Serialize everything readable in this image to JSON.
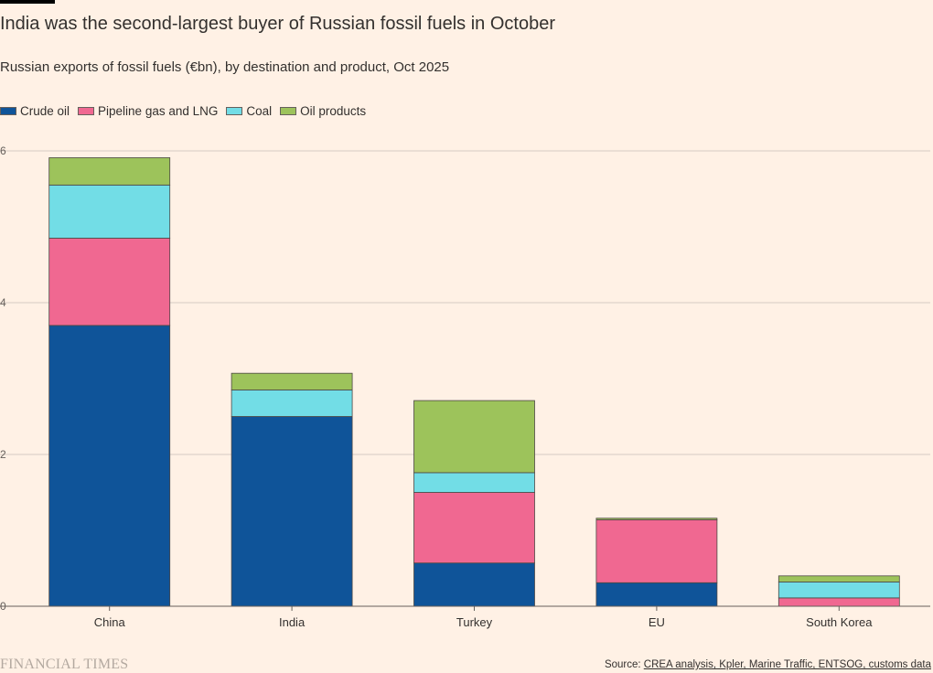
{
  "header": {
    "title": "India was the second-largest buyer of Russian fossil fuels in October",
    "subtitle": "Russian exports of fossil fuels (€bn), by destination and product, Oct 2025"
  },
  "footer": {
    "brand": "FINANCIAL TIMES",
    "source_prefix": "Source: ",
    "source_links": "CREA analysis, Kpler, Marine Traffic, ENTSOG, customs data"
  },
  "colors": {
    "background": "#fff1e5",
    "crude": "#0f5499",
    "gas": "#f06891",
    "coal": "#72dde6",
    "oil_products": "#9dc35b"
  },
  "chart_data": {
    "type": "bar",
    "stacked": true,
    "title": "India was the second-largest buyer of Russian fossil fuels in October",
    "subtitle": "Russian exports of fossil fuels (€bn), by destination and product, Oct 2025",
    "xlabel": "",
    "ylabel": "",
    "ylim": [
      0,
      6
    ],
    "yticks": [
      "0",
      "2",
      "4",
      "6"
    ],
    "grid": true,
    "legend_position": "top-left",
    "categories": [
      "China",
      "India",
      "Turkey",
      "EU",
      "South Korea"
    ],
    "series": [
      {
        "name": "Crude oil",
        "color": "#0f5499",
        "values": [
          3.7,
          2.5,
          0.57,
          0.31,
          0.0
        ]
      },
      {
        "name": "Pipeline gas and LNG",
        "color": "#f06891",
        "values": [
          1.15,
          0.0,
          0.93,
          0.83,
          0.11
        ]
      },
      {
        "name": "Coal",
        "color": "#72dde6",
        "values": [
          0.7,
          0.35,
          0.26,
          0.0,
          0.21
        ]
      },
      {
        "name": "Oil products",
        "color": "#9dc35b",
        "values": [
          0.36,
          0.22,
          0.95,
          0.02,
          0.08
        ]
      }
    ]
  }
}
